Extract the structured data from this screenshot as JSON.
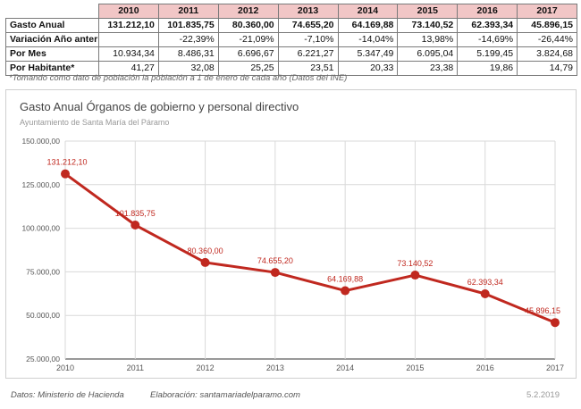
{
  "table": {
    "years": [
      "2010",
      "2011",
      "2012",
      "2013",
      "2014",
      "2015",
      "2016",
      "2017"
    ],
    "rows": [
      {
        "label": "Gasto Anual",
        "values": [
          "131.212,10",
          "101.835,75",
          "80.360,00",
          "74.655,20",
          "64.169,88",
          "73.140,52",
          "62.393,34",
          "45.896,15"
        ]
      },
      {
        "label": "Variación Año anterior",
        "values": [
          "",
          "-22,39%",
          "-21,09%",
          "-7,10%",
          "-14,04%",
          "13,98%",
          "-14,69%",
          "-26,44%"
        ]
      },
      {
        "label": "Por Mes",
        "values": [
          "10.934,34",
          "8.486,31",
          "6.696,67",
          "6.221,27",
          "5.347,49",
          "6.095,04",
          "5.199,45",
          "3.824,68"
        ]
      },
      {
        "label": "Por Habitante*",
        "values": [
          "41,27",
          "32,08",
          "25,25",
          "23,51",
          "20,33",
          "23,38",
          "19,86",
          "14,79"
        ]
      }
    ]
  },
  "note": "*Tomando como dato de población la población a 1 de enero de cada año (Datos del INE)",
  "chart_data": {
    "type": "line",
    "title": "Gasto Anual Órganos de gobierno y personal directivo",
    "subtitle": "Ayuntamiento de Santa María del Páramo",
    "categories": [
      "2010",
      "2011",
      "2012",
      "2013",
      "2014",
      "2015",
      "2016",
      "2017"
    ],
    "values": [
      131212.1,
      101835.75,
      80360.0,
      74655.2,
      64169.88,
      73140.52,
      62393.34,
      45896.15
    ],
    "data_labels": [
      "131.212,10",
      "101.835,75",
      "80.360,00",
      "74.655,20",
      "64.169,88",
      "73.140,52",
      "62.393,34",
      "45.896,15"
    ],
    "yticks": [
      25000,
      50000,
      75000,
      100000,
      125000,
      150000
    ],
    "ytick_labels": [
      "25.000,00",
      "50.000,00",
      "75.000,00",
      "100.000,00",
      "125.000,00",
      "150.000,00"
    ],
    "ylim": [
      25000,
      150000
    ],
    "grid": true,
    "line_color": "#c0281f",
    "label_color": "#c0281f"
  },
  "footer": {
    "source": "Datos: Ministerio de Hacienda",
    "author": "Elaboración: santamariadelparamo.com",
    "date": "5.2.2019"
  }
}
